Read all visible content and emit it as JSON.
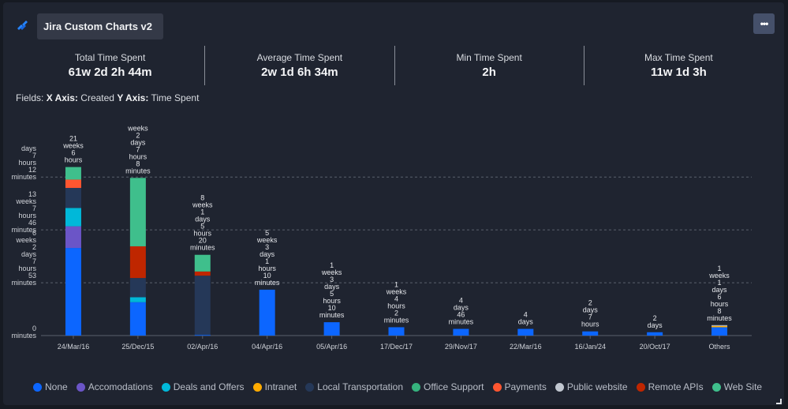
{
  "header": {
    "title": "Jira Custom Charts v2",
    "logo_icon": "jira-logo-icon",
    "more_button_label": "•••"
  },
  "stats": [
    {
      "label": "Total Time Spent",
      "value": "61w 2d 2h 44m"
    },
    {
      "label": "Average Time Spent",
      "value": "2w 1d 6h 34m"
    },
    {
      "label": "Min Time Spent",
      "value": "2h"
    },
    {
      "label": "Max Time Spent",
      "value": "11w 1d 3h"
    }
  ],
  "fields": {
    "prefix": "Fields:",
    "x_label": "X Axis:",
    "x_value": "Created",
    "y_label": "Y Axis:",
    "y_value": "Time Spent"
  },
  "chart_data": {
    "type": "bar",
    "stacked": true,
    "title": "",
    "xlabel": "Created",
    "ylabel": "Time Spent",
    "unit": "weeks",
    "ylim": [
      0,
      26.5
    ],
    "grid": true,
    "legend_position": "bottom",
    "y_ticks": [
      {
        "value": 0,
        "lines": [
          "0",
          "minutes"
        ]
      },
      {
        "value": 6.33,
        "lines": [
          "6",
          "weeks",
          "2",
          "days",
          "7",
          "hours",
          "53",
          "minutes"
        ]
      },
      {
        "value": 12.67,
        "lines": [
          "13",
          "weeks",
          "7",
          "hours",
          "46",
          "minutes"
        ]
      },
      {
        "value": 19,
        "lines": [
          "",
          "days",
          "7",
          "hours",
          "12",
          "minutes"
        ]
      }
    ],
    "categories": [
      "24/Mar/16",
      "25/Dec/15",
      "02/Apr/16",
      "04/Apr/16",
      "05/Apr/16",
      "17/Dec/17",
      "29/Nov/17",
      "22/Mar/16",
      "16/Jan/24",
      "20/Oct/17",
      "Others"
    ],
    "totals_labels": [
      [
        "21",
        "weeks",
        "6",
        "hours"
      ],
      [
        "weeks",
        "2",
        "days",
        "7",
        "hours",
        "8",
        "minutes"
      ],
      [
        "8",
        "weeks",
        "1",
        "days",
        "5",
        "hours",
        "20",
        "minutes"
      ],
      [
        "5",
        "weeks",
        "3",
        "days",
        "1",
        "hours",
        "10",
        "minutes"
      ],
      [
        "1",
        "weeks",
        "3",
        "days",
        "5",
        "hours",
        "10",
        "minutes"
      ],
      [
        "1",
        "weeks",
        "4",
        "hours",
        "2",
        "minutes"
      ],
      [
        "4",
        "days",
        "46",
        "minutes"
      ],
      [
        "4",
        "days"
      ],
      [
        "2",
        "days",
        "7",
        "hours"
      ],
      [
        "2",
        "days"
      ],
      [
        "1",
        "weeks",
        "1",
        "days",
        "6",
        "hours",
        "8",
        "minutes"
      ]
    ],
    "series": [
      {
        "name": "None",
        "color": "#0c66ff",
        "values": [
          10.5,
          4.0,
          0.08,
          5.5,
          1.6,
          1.0,
          0.8,
          0.8,
          0.5,
          0.4,
          1.0
        ]
      },
      {
        "name": "Accomodations",
        "color": "#6b55c7",
        "values": [
          2.6,
          0,
          0,
          0,
          0,
          0,
          0,
          0,
          0,
          0,
          0
        ]
      },
      {
        "name": "Deals and Offers",
        "color": "#00b8d9",
        "values": [
          2.2,
          0.6,
          0,
          0,
          0,
          0,
          0,
          0,
          0,
          0,
          0
        ]
      },
      {
        "name": "Intranet",
        "color": "#ffab00",
        "values": [
          0,
          0,
          0,
          0,
          0,
          0,
          0,
          0,
          0,
          0,
          0.15
        ]
      },
      {
        "name": "Local Transportation",
        "color": "#253858",
        "values": [
          2.4,
          2.3,
          7.1,
          0,
          0,
          0,
          0,
          0,
          0,
          0,
          0
        ]
      },
      {
        "name": "Office Support",
        "color": "#36b37e",
        "values": [
          0,
          0,
          0,
          0,
          0,
          0,
          0,
          0,
          0,
          0,
          0
        ]
      },
      {
        "name": "Payments",
        "color": "#ff5630",
        "values": [
          1.0,
          0,
          0,
          0,
          0,
          0,
          0,
          0,
          0,
          0,
          0
        ]
      },
      {
        "name": "Public website",
        "color": "#c1c7d0",
        "values": [
          0,
          0,
          0,
          0,
          0,
          0,
          0,
          0,
          0,
          0,
          0.1
        ]
      },
      {
        "name": "Remote APIs",
        "color": "#bf2600",
        "values": [
          0,
          3.8,
          0.5,
          0,
          0,
          0,
          0,
          0,
          0,
          0,
          0
        ]
      },
      {
        "name": "Web Site",
        "color": "#3fbf8c",
        "values": [
          1.5,
          8.2,
          2.0,
          0,
          0,
          0,
          0,
          0,
          0,
          0,
          0
        ]
      }
    ]
  }
}
